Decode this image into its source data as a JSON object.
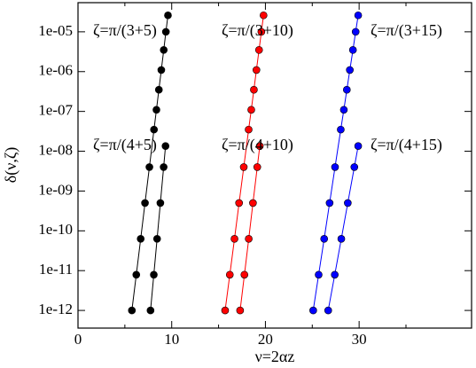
{
  "chart_data": {
    "type": "scatter",
    "xlabel": "ν=2αz",
    "ylabel": "δ(ν,ζ)",
    "xlim": [
      0,
      42
    ],
    "xticks": [
      0,
      10,
      20,
      30
    ],
    "xminorticks": [
      5,
      15,
      25,
      35
    ],
    "ylim": [
      3.6e-13,
      5.4e-05
    ],
    "ylog": true,
    "yticks": [
      {
        "value": 1e-12,
        "label": "1e-12"
      },
      {
        "value": 1e-11,
        "label": "1e-11"
      },
      {
        "value": 1e-10,
        "label": "1e-10"
      },
      {
        "value": 1e-09,
        "label": "1e-09"
      },
      {
        "value": 1e-08,
        "label": "1e-08"
      },
      {
        "value": 1e-07,
        "label": "1e-07"
      },
      {
        "value": 1e-06,
        "label": "1e-06"
      },
      {
        "value": 1e-05,
        "label": "1e-05"
      }
    ],
    "series": [
      {
        "name": "ζ=π/(3+5)",
        "color": "#000000",
        "x": [
          5.75,
          6.22,
          6.69,
          7.15,
          7.62,
          8.11,
          8.37,
          8.63,
          8.89,
          9.15,
          9.38,
          9.6
        ],
        "values": [
          1e-12,
          7.9e-12,
          6.3e-11,
          5e-10,
          4e-09,
          3.5e-08,
          1.1e-07,
          3.5e-07,
          1.1e-06,
          3.5e-06,
          1e-05,
          2.6e-05
        ]
      },
      {
        "name": "ζ=π/(4+5)",
        "color": "#000000",
        "x": [
          7.74,
          8.09,
          8.44,
          8.79,
          9.14,
          9.34
        ],
        "values": [
          1e-12,
          7.9e-12,
          6.3e-11,
          5e-10,
          4e-09,
          1.35e-08
        ]
      },
      {
        "name": "ζ=π/(3+10)",
        "color": "#ff0000",
        "x": [
          15.7,
          16.2,
          16.7,
          17.19,
          17.69,
          18.21,
          18.49,
          18.77,
          19.04,
          19.32,
          19.57,
          19.8
        ],
        "values": [
          1e-12,
          7.9e-12,
          6.3e-11,
          5e-10,
          4e-09,
          3.5e-08,
          1.1e-07,
          3.5e-07,
          1.1e-06,
          3.5e-06,
          1e-05,
          2.6e-05
        ]
      },
      {
        "name": "ζ=π/(4+10)",
        "color": "#ff0000",
        "x": [
          17.3,
          17.76,
          18.22,
          18.67,
          19.13,
          19.4
        ],
        "values": [
          1e-12,
          7.9e-12,
          6.3e-11,
          5e-10,
          4e-09,
          1.35e-08
        ]
      },
      {
        "name": "ζ=π/(3+15)",
        "color": "#0000ff",
        "x": [
          25.1,
          25.68,
          26.27,
          26.85,
          27.43,
          28.04,
          28.37,
          28.69,
          29.01,
          29.34,
          29.63,
          29.9
        ],
        "values": [
          1e-12,
          7.9e-12,
          6.3e-11,
          5e-10,
          4e-09,
          3.5e-08,
          1.1e-07,
          3.5e-07,
          1.1e-06,
          3.5e-06,
          1e-05,
          2.6e-05
        ]
      },
      {
        "name": "ζ=π/(4+15)",
        "color": "#0000ff",
        "x": [
          26.7,
          27.4,
          28.1,
          28.79,
          29.49,
          29.9
        ],
        "values": [
          1e-12,
          7.9e-12,
          6.3e-11,
          5e-10,
          4e-09,
          1.35e-08
        ]
      }
    ]
  }
}
